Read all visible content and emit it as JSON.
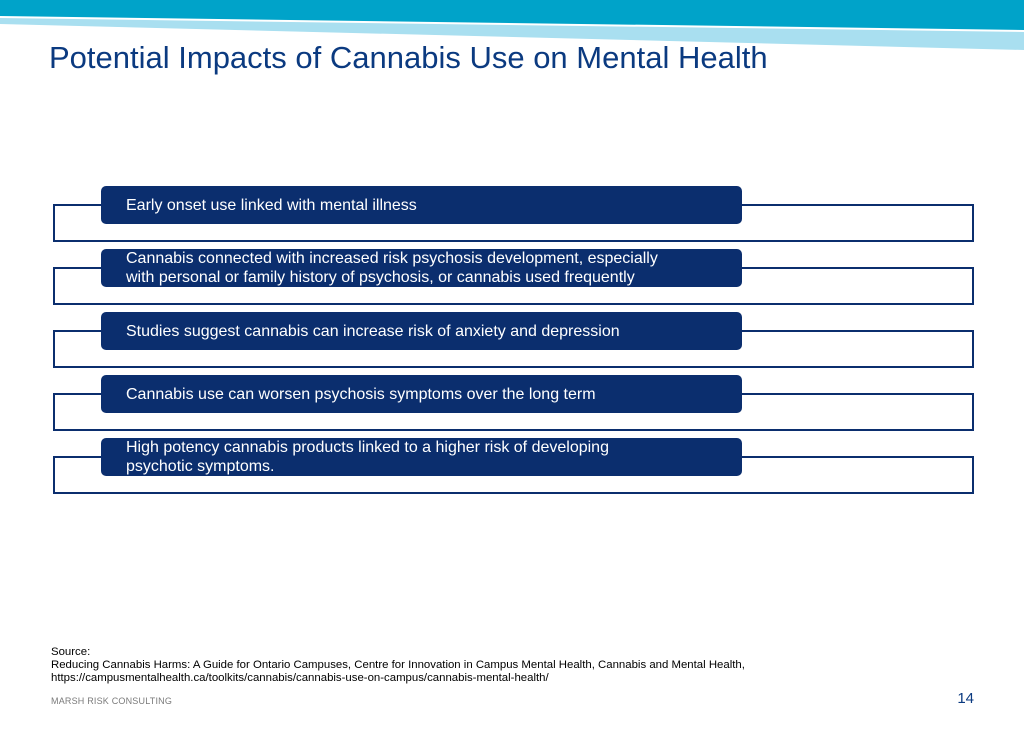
{
  "slide": {
    "title": "Potential Impacts of Cannabis Use on Mental Health",
    "items": [
      {
        "line1": "Early onset use linked with mental illness",
        "line2": ""
      },
      {
        "line1": "Cannabis connected with increased risk psychosis development, especially",
        "line2": "with personal or family history of psychosis, or cannabis used frequently"
      },
      {
        "line1": "Studies suggest cannabis can increase risk of anxiety and depression",
        "line2": ""
      },
      {
        "line1": "Cannabis use can worsen psychosis symptoms over the long term",
        "line2": ""
      },
      {
        "line1": "High potency cannabis products linked to a higher risk of developing",
        "line2": "psychotic symptoms."
      }
    ],
    "source": {
      "label": "Source:",
      "line1": "Reducing Cannabis Harms: A Guide for Ontario Campuses, Centre for Innovation in Campus Mental Health, Cannabis and Mental Health,",
      "line2": "https://campusmentalhealth.ca/toolkits/cannabis/cannabis-use-on-campus/cannabis-mental-health/"
    },
    "footer": {
      "company": "MARSH RISK CONSULTING",
      "page_number": "14"
    }
  },
  "colors": {
    "band_dark": "#00a3c9",
    "band_light": "#a9dff0",
    "title": "#0b3a80",
    "pill": "#0b2e6e"
  }
}
